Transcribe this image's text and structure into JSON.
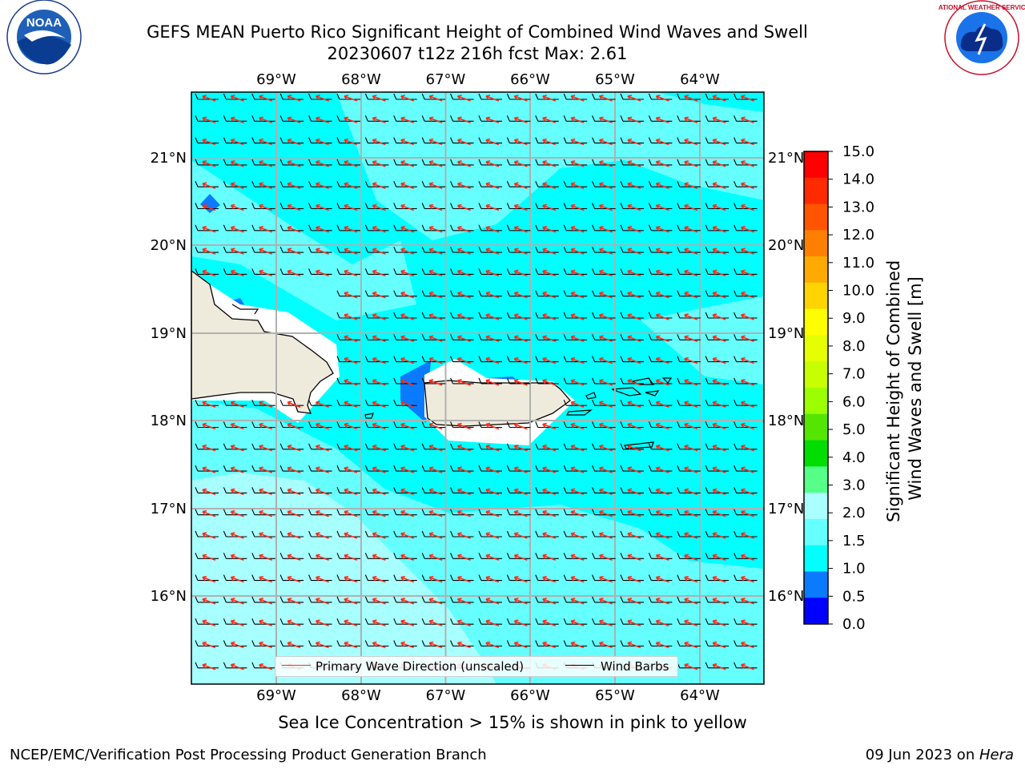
{
  "header": {
    "title_line1": "GEFS MEAN Puerto Rico Significant Height of Combined Wind Waves and Swell",
    "title_line2": "20230607 t12z 216h fcst   Max: 2.61"
  },
  "logos": {
    "left": {
      "name": "noaa-logo",
      "text": "NOAA"
    },
    "right": {
      "name": "nws-logo",
      "text": "NATIONAL WEATHER SERVICE"
    }
  },
  "map": {
    "lon_labels": [
      "69°W",
      "68°W",
      "67°W",
      "66°W",
      "65°W",
      "64°W"
    ],
    "lat_labels": [
      "21°N",
      "20°N",
      "19°N",
      "18°N",
      "17°N",
      "16°N"
    ],
    "lon_range": [
      -70.0,
      -63.25
    ],
    "lat_range": [
      15.0,
      21.75
    ],
    "legend": {
      "wave_dir_label": "Primary Wave Direction (unscaled)",
      "wind_barbs_label": "Wind Barbs",
      "wave_dir_color": "#ff2a1a",
      "wind_barb_color": "#000000"
    },
    "land_color": "#efebdc",
    "fill_colors": {
      "cyan": "#00ffff",
      "light_cyan": "#66ffff",
      "pale_cyan": "#a8ffff",
      "blue": "#0a7aff"
    }
  },
  "colorbar": {
    "label": "Significant Height of Combined Wind Waves and Swell [m]",
    "ticks": [
      "15.0",
      "14.0",
      "13.0",
      "12.0",
      "11.0",
      "10.0",
      "9.0",
      "8.0",
      "7.0",
      "6.0",
      "5.0",
      "4.0",
      "3.0",
      "2.0",
      "1.5",
      "1.0",
      "0.5",
      "0.0"
    ],
    "colors_top_to_bottom": [
      "#ff0000",
      "#ff2a00",
      "#ff5500",
      "#ff8000",
      "#ffaa00",
      "#ffd400",
      "#ffff00",
      "#e5ff00",
      "#c8ff00",
      "#9bff00",
      "#55e600",
      "#00dd00",
      "#55ff88",
      "#aaffff",
      "#66ffff",
      "#00ffff",
      "#0a7aff",
      "#0000ff"
    ]
  },
  "footer": {
    "sea_ice_note": "Sea Ice Concentration > 15% is shown in pink to yellow",
    "credit_left": "NCEP/EMC/Verification Post Processing Product Generation Branch",
    "date_text": "09 Jun 2023 on ",
    "machine": "Hera"
  }
}
